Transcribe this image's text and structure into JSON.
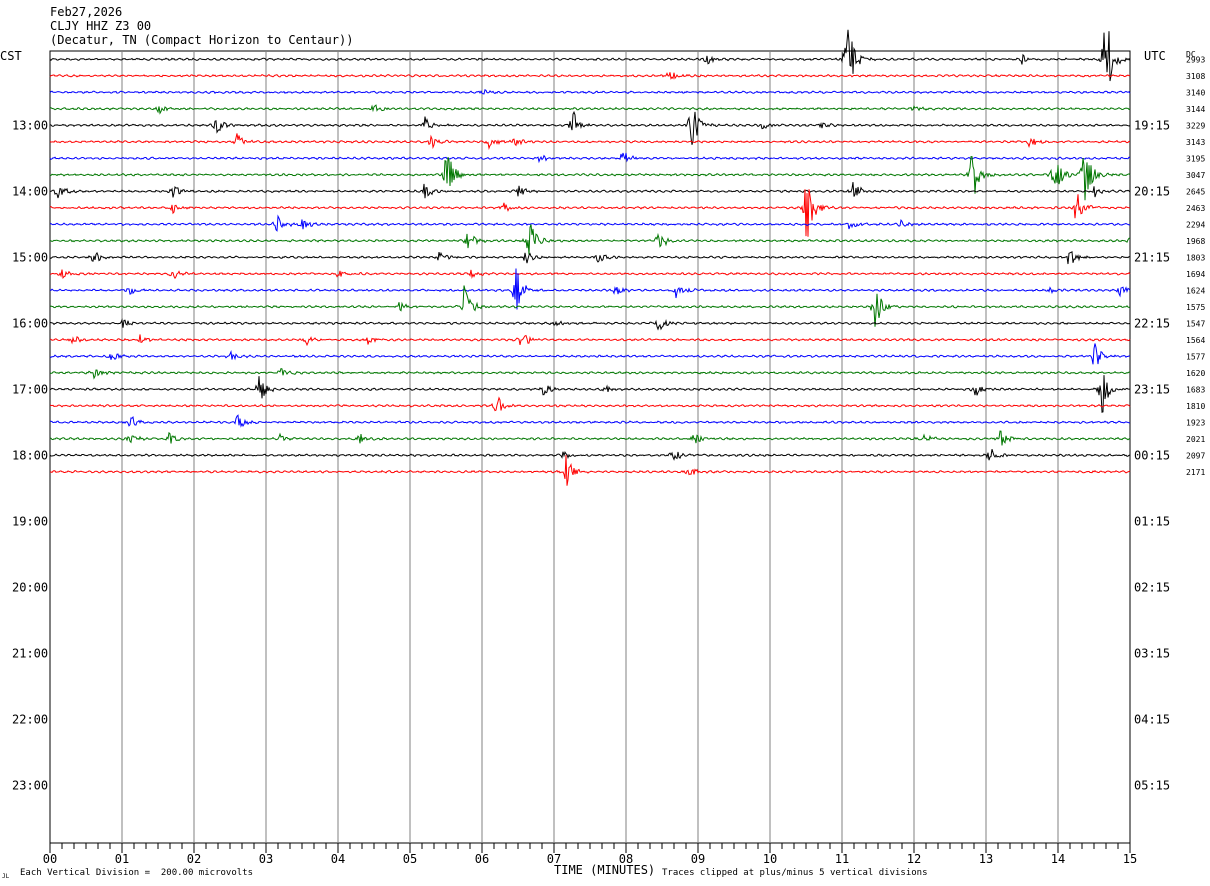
{
  "header": {
    "date": "Feb27,2026",
    "station": "CLJY HHZ Z3 00",
    "location": "(Decatur, TN (Compact Horizon to Centaur))"
  },
  "left_timezone": "CST",
  "right_timezone": "UTC",
  "dc_label": "DC",
  "footer": {
    "vertical_division": "Each Vertical Division =  200.00 microvolts",
    "xlabel": "TIME (MINUTES)",
    "clipping_note": "Traces clipped at plus/minus 5 vertical divisions",
    "corner_mark": "JL"
  },
  "colors": {
    "trace_cycle": [
      "#000000",
      "#ff0000",
      "#0000ff",
      "#007700"
    ],
    "grid": "#808080"
  },
  "chart_data": {
    "type": "line",
    "title": "CLJY HHZ Z3 00",
    "xlabel": "TIME (MINUTES)",
    "xlim": [
      0,
      15
    ],
    "x_ticks": [
      "00",
      "01",
      "02",
      "03",
      "04",
      "05",
      "06",
      "07",
      "08",
      "09",
      "10",
      "11",
      "12",
      "13",
      "14",
      "15"
    ],
    "rows_total": 48,
    "rows_per_hour": 4,
    "left_hour_labels": [
      "13:00",
      "14:00",
      "15:00",
      "16:00",
      "17:00",
      "18:00",
      "19:00",
      "20:00",
      "21:00",
      "22:00",
      "23:00"
    ],
    "right_hour_labels": [
      "19:15",
      "20:15",
      "21:15",
      "22:15",
      "23:15",
      "00:15",
      "01:15",
      "02:15",
      "03:15",
      "04:15",
      "05:15"
    ],
    "dc_offsets": [
      "2993",
      "3108",
      "3140",
      "3144",
      "3229",
      "3143",
      "3195",
      "3047",
      "2645",
      "2463",
      "2294",
      "1968",
      "1803",
      "1694",
      "1624",
      "1575",
      "1547",
      "1564",
      "1577",
      "1620",
      "1683",
      "1810",
      "1923",
      "2021",
      "2097",
      "2171"
    ],
    "trace_events": [
      [
        [
          11.05,
          1.0
        ],
        [
          14.65,
          1.0
        ],
        [
          9.1,
          0.12
        ],
        [
          13.5,
          0.08
        ]
      ],
      [
        [
          8.6,
          0.12
        ]
      ],
      [
        [
          6.0,
          0.07
        ]
      ],
      [
        [
          1.5,
          0.1
        ],
        [
          4.5,
          0.1
        ],
        [
          12.0,
          0.06
        ]
      ],
      [
        [
          2.3,
          0.15
        ],
        [
          5.2,
          0.15
        ],
        [
          7.25,
          0.3
        ],
        [
          8.9,
          0.55
        ],
        [
          9.9,
          0.1
        ],
        [
          10.7,
          0.08
        ]
      ],
      [
        [
          2.6,
          0.14
        ],
        [
          5.3,
          0.14
        ],
        [
          6.1,
          0.12
        ],
        [
          6.45,
          0.1
        ],
        [
          13.6,
          0.12
        ]
      ],
      [
        [
          6.8,
          0.08
        ],
        [
          7.95,
          0.15
        ]
      ],
      [
        [
          5.5,
          0.55
        ],
        [
          12.8,
          0.6
        ],
        [
          13.95,
          0.55
        ],
        [
          14.35,
          0.7
        ]
      ],
      [
        [
          0.1,
          0.15
        ],
        [
          1.7,
          0.12
        ],
        [
          5.2,
          0.15
        ],
        [
          6.5,
          0.1
        ],
        [
          11.15,
          0.2
        ],
        [
          14.5,
          0.1
        ]
      ],
      [
        [
          1.7,
          0.08
        ],
        [
          6.3,
          0.08
        ],
        [
          10.5,
          0.75
        ],
        [
          14.25,
          0.4
        ]
      ],
      [
        [
          3.15,
          0.18
        ],
        [
          3.5,
          0.1
        ],
        [
          11.1,
          0.08
        ],
        [
          11.8,
          0.08
        ]
      ],
      [
        [
          5.8,
          0.18
        ],
        [
          6.65,
          0.45
        ],
        [
          8.45,
          0.2
        ],
        [
          15.0,
          0.1
        ]
      ],
      [
        [
          0.6,
          0.12
        ],
        [
          5.4,
          0.1
        ],
        [
          6.6,
          0.12
        ],
        [
          7.6,
          0.1
        ],
        [
          14.15,
          0.2
        ]
      ],
      [
        [
          0.15,
          0.1
        ],
        [
          1.7,
          0.1
        ],
        [
          4.0,
          0.1
        ],
        [
          5.85,
          0.1
        ]
      ],
      [
        [
          1.1,
          0.1
        ],
        [
          6.45,
          0.55
        ],
        [
          7.85,
          0.12
        ],
        [
          8.7,
          0.3
        ],
        [
          13.9,
          0.06
        ],
        [
          14.85,
          0.12
        ]
      ],
      [
        [
          4.85,
          0.1
        ],
        [
          5.75,
          0.4
        ],
        [
          11.45,
          0.45
        ]
      ],
      [
        [
          1.0,
          0.08
        ],
        [
          7.0,
          0.06
        ],
        [
          8.45,
          0.15
        ]
      ],
      [
        [
          0.3,
          0.08
        ],
        [
          1.25,
          0.08
        ],
        [
          3.55,
          0.12
        ],
        [
          4.4,
          0.1
        ],
        [
          6.55,
          0.2
        ]
      ],
      [
        [
          0.85,
          0.08
        ],
        [
          2.5,
          0.08
        ],
        [
          14.5,
          0.25
        ]
      ],
      [
        [
          0.6,
          0.12
        ],
        [
          3.2,
          0.1
        ]
      ],
      [
        [
          2.9,
          0.3
        ],
        [
          6.85,
          0.1
        ],
        [
          7.7,
          0.1
        ],
        [
          12.85,
          0.15
        ],
        [
          14.6,
          0.5
        ]
      ],
      [
        [
          6.2,
          0.2
        ]
      ],
      [
        [
          1.1,
          0.15
        ],
        [
          2.6,
          0.15
        ]
      ],
      [
        [
          1.1,
          0.1
        ],
        [
          1.65,
          0.1
        ],
        [
          3.2,
          0.08
        ],
        [
          4.3,
          0.1
        ],
        [
          8.95,
          0.12
        ],
        [
          12.1,
          0.12
        ],
        [
          13.2,
          0.18
        ]
      ],
      [
        [
          7.1,
          0.08
        ],
        [
          8.65,
          0.12
        ],
        [
          13.05,
          0.15
        ]
      ],
      [
        [
          7.15,
          0.35
        ],
        [
          8.85,
          0.12
        ]
      ]
    ]
  }
}
